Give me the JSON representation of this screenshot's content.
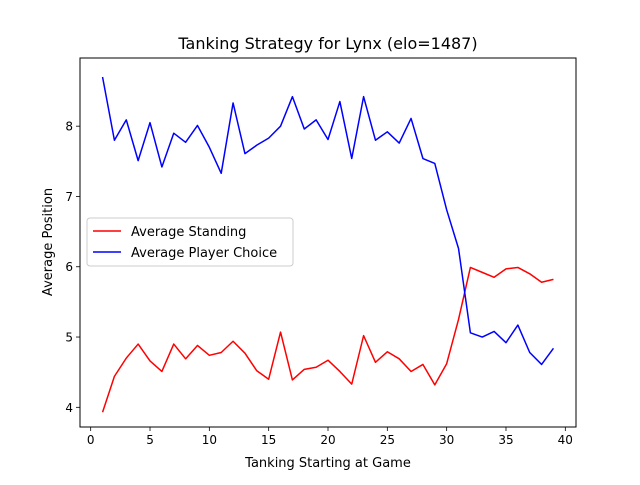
{
  "chart_data": {
    "type": "line",
    "title": "Tanking Strategy for Lynx (elo=1487)",
    "xlabel": "Tanking Starting at Game",
    "ylabel": "Average Position",
    "xlim": [
      -0.9,
      40.9
    ],
    "ylim": [
      3.72,
      8.97
    ],
    "xticks": [
      0,
      5,
      10,
      15,
      20,
      25,
      30,
      35,
      40
    ],
    "yticks": [
      4,
      5,
      6,
      7,
      8
    ],
    "grid": false,
    "legend_position": "center-left",
    "x": [
      1,
      2,
      3,
      4,
      5,
      6,
      7,
      8,
      9,
      10,
      11,
      12,
      13,
      14,
      15,
      16,
      17,
      18,
      19,
      20,
      21,
      22,
      23,
      24,
      25,
      26,
      27,
      28,
      29,
      30,
      31,
      32,
      33,
      34,
      35,
      36,
      37,
      38,
      39
    ],
    "series": [
      {
        "name": "Average Standing",
        "color": "#ff0000",
        "values": [
          3.93,
          4.44,
          4.7,
          4.9,
          4.66,
          4.51,
          4.9,
          4.69,
          4.88,
          4.74,
          4.78,
          4.94,
          4.77,
          4.52,
          4.4,
          5.07,
          4.39,
          4.54,
          4.57,
          4.67,
          4.51,
          4.33,
          5.02,
          4.64,
          4.79,
          4.69,
          4.51,
          4.61,
          4.32,
          4.62,
          5.25,
          5.99,
          5.92,
          5.85,
          5.97,
          5.99,
          5.9,
          5.78,
          5.82
        ]
      },
      {
        "name": "Average Player Choice",
        "color": "#0000ff",
        "values": [
          8.7,
          7.8,
          8.09,
          7.51,
          8.05,
          7.42,
          7.9,
          7.77,
          8.01,
          7.7,
          7.33,
          8.33,
          7.61,
          7.73,
          7.83,
          8.0,
          8.42,
          7.96,
          8.09,
          7.81,
          8.35,
          7.54,
          8.42,
          7.8,
          7.92,
          7.76,
          8.11,
          7.54,
          7.47,
          6.81,
          6.26,
          5.06,
          5.0,
          5.08,
          4.92,
          5.17,
          4.78,
          4.61,
          4.84
        ]
      }
    ]
  }
}
